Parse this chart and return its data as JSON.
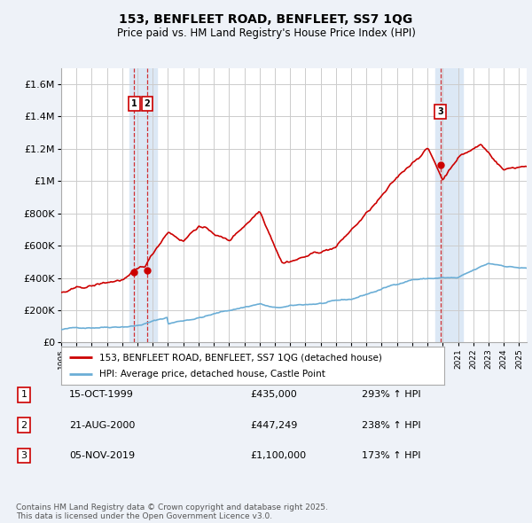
{
  "title": "153, BENFLEET ROAD, BENFLEET, SS7 1QG",
  "subtitle": "Price paid vs. HM Land Registry's House Price Index (HPI)",
  "ylim": [
    0,
    1700000
  ],
  "yticks": [
    0,
    200000,
    400000,
    600000,
    800000,
    1000000,
    1200000,
    1400000,
    1600000
  ],
  "ytick_labels": [
    "£0",
    "£200K",
    "£400K",
    "£600K",
    "£800K",
    "£1M",
    "£1.2M",
    "£1.4M",
    "£1.6M"
  ],
  "hpi_color": "#6baed6",
  "price_color": "#cc0000",
  "bg_color": "#eef2f8",
  "plot_bg": "#ffffff",
  "grid_color": "#cccccc",
  "shade_color": "#dce8f5",
  "sale1_date": 1999.79,
  "sale1_price": 435000,
  "sale2_date": 2000.64,
  "sale2_price": 447249,
  "sale3_date": 2019.84,
  "sale3_price": 1100000,
  "legend_line1": "153, BENFLEET ROAD, BENFLEET, SS7 1QG (detached house)",
  "legend_line2": "HPI: Average price, detached house, Castle Point",
  "table_rows": [
    {
      "num": "1",
      "date": "15-OCT-1999",
      "price": "£435,000",
      "hpi": "293% ↑ HPI"
    },
    {
      "num": "2",
      "date": "21-AUG-2000",
      "price": "£447,249",
      "hpi": "238% ↑ HPI"
    },
    {
      "num": "3",
      "date": "05-NOV-2019",
      "price": "£1,100,000",
      "hpi": "173% ↑ HPI"
    }
  ],
  "footnote": "Contains HM Land Registry data © Crown copyright and database right 2025.\nThis data is licensed under the Open Government Licence v3.0.",
  "xmin": 1995.0,
  "xmax": 2025.5
}
